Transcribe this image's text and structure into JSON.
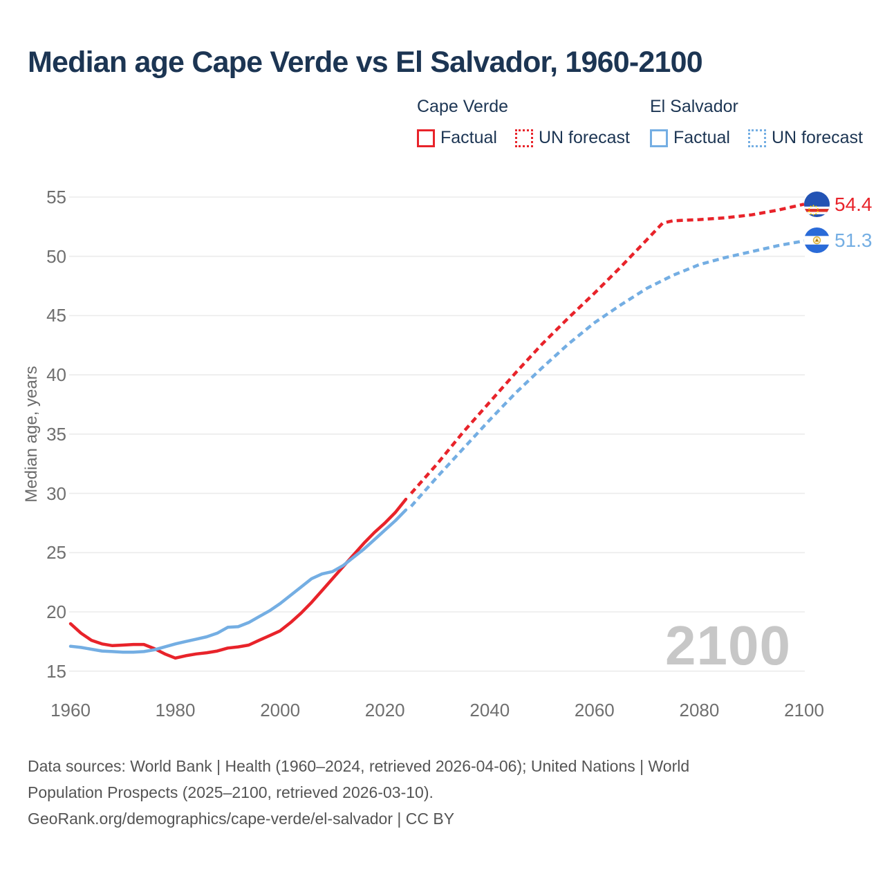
{
  "title": "Median age Cape Verde vs El Salvador, 1960-2100",
  "watermark": "2100",
  "colors": {
    "cape_verde": "#e8232a",
    "el_salvador": "#74aee3",
    "title_text": "#1c3553",
    "axis_text": "#6f6f6f",
    "gridline": "#ebebeb",
    "watermark": "#c7c7c7"
  },
  "legend": {
    "groups": [
      {
        "name": "Cape Verde",
        "color": "#e8232a",
        "items": [
          {
            "label": "Factual",
            "style": "solid"
          },
          {
            "label": "UN forecast",
            "style": "dotted"
          }
        ]
      },
      {
        "name": "El Salvador",
        "color": "#74aee3",
        "items": [
          {
            "label": "Factual",
            "style": "solid"
          },
          {
            "label": "UN forecast",
            "style": "dotted"
          }
        ]
      }
    ]
  },
  "end_labels": [
    {
      "series": "Cape Verde UN forecast",
      "value": "54.4",
      "color": "#e8232a",
      "flag": "cape-verde-flag"
    },
    {
      "series": "El Salvador UN forecast",
      "value": "51.3",
      "color": "#74aee3",
      "flag": "el-salvador-flag"
    }
  ],
  "footer": {
    "lines": [
      "Data sources: World Bank | Health (1960–2024, retrieved 2026-04-06); United Nations | World",
      "Population Prospects (2025–2100, retrieved 2026-03-10).",
      "GeoRank.org/demographics/cape-verde/el-salvador | CC BY"
    ]
  },
  "chart_data": {
    "type": "line",
    "title": "Median age Cape Verde vs El Salvador, 1960-2100",
    "xlabel": "",
    "ylabel": "Median age, years",
    "xlim": [
      1960,
      2100
    ],
    "ylim": [
      15,
      55
    ],
    "grid": "horizontal",
    "legend_position": "top",
    "x_ticks": [
      1960,
      1980,
      2000,
      2020,
      2040,
      2060,
      2080,
      2100
    ],
    "y_ticks": [
      15,
      20,
      25,
      30,
      35,
      40,
      45,
      50,
      55
    ],
    "series": [
      {
        "name": "Cape Verde — Factual",
        "color": "#e8232a",
        "style": "solid",
        "points": [
          [
            1960,
            19.0
          ],
          [
            1962,
            18.2
          ],
          [
            1964,
            17.6
          ],
          [
            1966,
            17.3
          ],
          [
            1968,
            17.15
          ],
          [
            1970,
            17.2
          ],
          [
            1972,
            17.25
          ],
          [
            1974,
            17.25
          ],
          [
            1976,
            16.9
          ],
          [
            1978,
            16.45
          ],
          [
            1980,
            16.1
          ],
          [
            1982,
            16.3
          ],
          [
            1984,
            16.45
          ],
          [
            1986,
            16.55
          ],
          [
            1988,
            16.7
          ],
          [
            1990,
            16.95
          ],
          [
            1992,
            17.05
          ],
          [
            1994,
            17.2
          ],
          [
            1996,
            17.6
          ],
          [
            1998,
            18.0
          ],
          [
            2000,
            18.4
          ],
          [
            2002,
            19.1
          ],
          [
            2004,
            19.9
          ],
          [
            2006,
            20.8
          ],
          [
            2008,
            21.8
          ],
          [
            2010,
            22.8
          ],
          [
            2012,
            23.8
          ],
          [
            2014,
            24.8
          ],
          [
            2016,
            25.8
          ],
          [
            2018,
            26.7
          ],
          [
            2020,
            27.5
          ],
          [
            2022,
            28.4
          ],
          [
            2024,
            29.5
          ]
        ]
      },
      {
        "name": "Cape Verde — UN forecast",
        "color": "#e8232a",
        "style": "dashed",
        "points": [
          [
            2025,
            30.0
          ],
          [
            2030,
            32.5
          ],
          [
            2035,
            35.2
          ],
          [
            2040,
            37.7
          ],
          [
            2045,
            40.2
          ],
          [
            2050,
            42.6
          ],
          [
            2055,
            44.8
          ],
          [
            2060,
            46.9
          ],
          [
            2065,
            49.1
          ],
          [
            2070,
            51.4
          ],
          [
            2073,
            52.8
          ],
          [
            2075,
            53.0
          ],
          [
            2080,
            53.1
          ],
          [
            2085,
            53.25
          ],
          [
            2090,
            53.5
          ],
          [
            2095,
            53.9
          ],
          [
            2100,
            54.4
          ]
        ]
      },
      {
        "name": "El Salvador — Factual",
        "color": "#74aee3",
        "style": "solid",
        "points": [
          [
            1960,
            17.1
          ],
          [
            1962,
            17.0
          ],
          [
            1964,
            16.85
          ],
          [
            1966,
            16.7
          ],
          [
            1968,
            16.65
          ],
          [
            1970,
            16.6
          ],
          [
            1972,
            16.6
          ],
          [
            1974,
            16.65
          ],
          [
            1976,
            16.8
          ],
          [
            1978,
            17.05
          ],
          [
            1980,
            17.3
          ],
          [
            1982,
            17.5
          ],
          [
            1984,
            17.7
          ],
          [
            1986,
            17.9
          ],
          [
            1988,
            18.2
          ],
          [
            1990,
            18.7
          ],
          [
            1992,
            18.75
          ],
          [
            1994,
            19.1
          ],
          [
            1996,
            19.6
          ],
          [
            1998,
            20.1
          ],
          [
            2000,
            20.7
          ],
          [
            2002,
            21.4
          ],
          [
            2004,
            22.1
          ],
          [
            2006,
            22.8
          ],
          [
            2008,
            23.2
          ],
          [
            2010,
            23.4
          ],
          [
            2012,
            23.9
          ],
          [
            2014,
            24.6
          ],
          [
            2016,
            25.3
          ],
          [
            2018,
            26.1
          ],
          [
            2020,
            26.9
          ],
          [
            2022,
            27.7
          ],
          [
            2024,
            28.6
          ]
        ]
      },
      {
        "name": "El Salvador — UN forecast",
        "color": "#74aee3",
        "style": "dashed",
        "points": [
          [
            2025,
            28.9
          ],
          [
            2030,
            31.4
          ],
          [
            2035,
            33.8
          ],
          [
            2040,
            36.2
          ],
          [
            2045,
            38.5
          ],
          [
            2050,
            40.6
          ],
          [
            2055,
            42.6
          ],
          [
            2060,
            44.4
          ],
          [
            2065,
            45.9
          ],
          [
            2070,
            47.3
          ],
          [
            2075,
            48.4
          ],
          [
            2080,
            49.3
          ],
          [
            2085,
            49.9
          ],
          [
            2090,
            50.4
          ],
          [
            2095,
            50.9
          ],
          [
            2100,
            51.3
          ]
        ]
      }
    ],
    "end_annotations": [
      {
        "series": "Cape Verde — UN forecast",
        "year": 2100,
        "value": 54.4
      },
      {
        "series": "El Salvador — UN forecast",
        "year": 2100,
        "value": 51.3
      }
    ]
  }
}
